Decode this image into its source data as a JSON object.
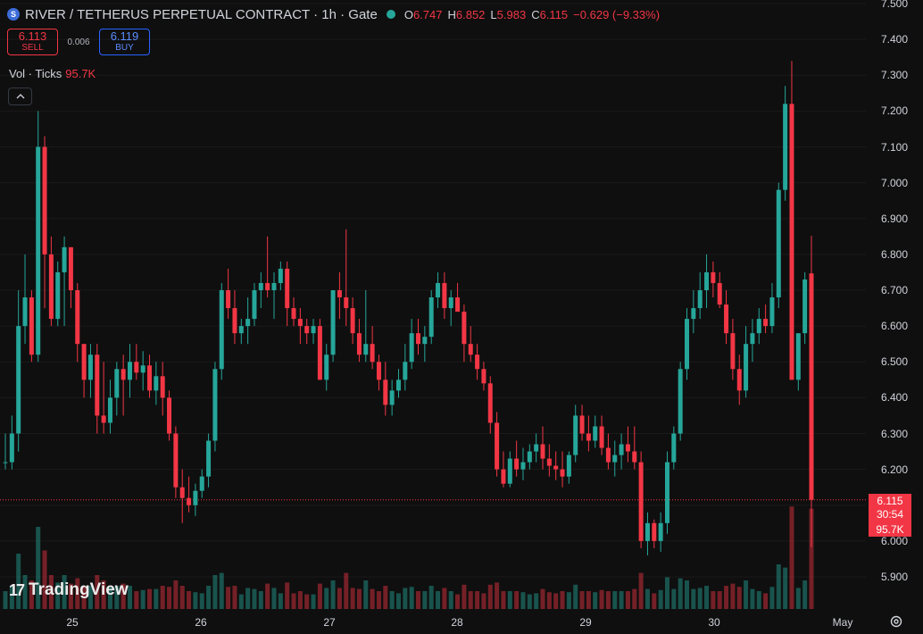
{
  "header": {
    "symbol_icon": "S",
    "title": "RIVER / TETHERUS PERPETUAL CONTRACT · 1h · Gate",
    "ohlc": {
      "o_label": "O",
      "o": "6.747",
      "h_label": "H",
      "h": "6.852",
      "l_label": "L",
      "l": "5.983",
      "c_label": "C",
      "c": "6.115",
      "change": "−0.629 (−9.33%)"
    }
  },
  "trade": {
    "sell_price": "6.113",
    "sell_label": "SELL",
    "spread": "0.006",
    "buy_price": "6.119",
    "buy_label": "BUY"
  },
  "volume_legend": {
    "label": "Vol · Ticks",
    "value": "95.7K"
  },
  "collapse_icon": "chevron-up-icon",
  "branding": {
    "logo_text": "TradingView",
    "logo_mark": "17"
  },
  "price_axis": {
    "labels": [
      "7.500",
      "7.400",
      "7.300",
      "7.200",
      "7.100",
      "7.000",
      "6.900",
      "6.800",
      "6.700",
      "6.600",
      "6.500",
      "6.400",
      "6.300",
      "6.200",
      "6.100",
      "6.000",
      "5.900"
    ],
    "current_price": "6.115",
    "countdown": "30:54",
    "current_volume": "95.7K"
  },
  "time_axis": {
    "labels": [
      "25",
      "26",
      "27",
      "28",
      "29",
      "30",
      "May"
    ]
  },
  "colors": {
    "up": "#26a69a",
    "down": "#f23645",
    "background": "#0f0f0f",
    "sell": "#f23645",
    "buy": "#2962ff"
  },
  "chart_data": {
    "type": "candlestick",
    "title": "RIVER / TETHERUS PERPETUAL CONTRACT · 1h · Gate",
    "ylim": [
      5.85,
      7.5
    ],
    "last_price": 6.115,
    "x_ticks": [
      "25",
      "26",
      "27",
      "28",
      "29",
      "30",
      "May"
    ],
    "candles_ohlc": [
      [
        6.22,
        6.3,
        6.2,
        6.22
      ],
      [
        6.22,
        6.35,
        6.2,
        6.3
      ],
      [
        6.3,
        6.7,
        6.25,
        6.6
      ],
      [
        6.6,
        6.8,
        6.55,
        6.68
      ],
      [
        6.68,
        6.7,
        6.5,
        6.52
      ],
      [
        6.52,
        7.2,
        6.5,
        7.1
      ],
      [
        7.1,
        7.13,
        6.65,
        6.8
      ],
      [
        6.8,
        6.85,
        6.6,
        6.62
      ],
      [
        6.62,
        6.78,
        6.6,
        6.75
      ],
      [
        6.75,
        6.85,
        6.6,
        6.82
      ],
      [
        6.82,
        6.82,
        6.65,
        6.7
      ],
      [
        6.7,
        6.72,
        6.5,
        6.55
      ],
      [
        6.55,
        6.55,
        6.4,
        6.45
      ],
      [
        6.45,
        6.55,
        6.4,
        6.52
      ],
      [
        6.52,
        6.55,
        6.3,
        6.35
      ],
      [
        6.35,
        6.5,
        6.3,
        6.33
      ],
      [
        6.33,
        6.45,
        6.3,
        6.4
      ],
      [
        6.4,
        6.5,
        6.35,
        6.48
      ],
      [
        6.48,
        6.52,
        6.35,
        6.45
      ],
      [
        6.45,
        6.55,
        6.4,
        6.5
      ],
      [
        6.5,
        6.55,
        6.45,
        6.47
      ],
      [
        6.47,
        6.53,
        6.42,
        6.49
      ],
      [
        6.49,
        6.52,
        6.4,
        6.42
      ],
      [
        6.42,
        6.5,
        6.38,
        6.46
      ],
      [
        6.46,
        6.5,
        6.35,
        6.4
      ],
      [
        6.4,
        6.42,
        6.28,
        6.3
      ],
      [
        6.3,
        6.32,
        6.12,
        6.15
      ],
      [
        6.15,
        6.2,
        6.05,
        6.12
      ],
      [
        6.12,
        6.18,
        6.08,
        6.1
      ],
      [
        6.1,
        6.16,
        6.07,
        6.14
      ],
      [
        6.14,
        6.2,
        6.12,
        6.18
      ],
      [
        6.18,
        6.3,
        6.15,
        6.28
      ],
      [
        6.28,
        6.5,
        6.25,
        6.48
      ],
      [
        6.48,
        6.72,
        6.45,
        6.7
      ],
      [
        6.7,
        6.76,
        6.62,
        6.65
      ],
      [
        6.65,
        6.7,
        6.55,
        6.58
      ],
      [
        6.58,
        6.62,
        6.55,
        6.6
      ],
      [
        6.6,
        6.68,
        6.55,
        6.62
      ],
      [
        6.62,
        6.72,
        6.6,
        6.7
      ],
      [
        6.7,
        6.75,
        6.65,
        6.72
      ],
      [
        6.72,
        6.85,
        6.68,
        6.7
      ],
      [
        6.7,
        6.75,
        6.62,
        6.72
      ],
      [
        6.72,
        6.78,
        6.7,
        6.76
      ],
      [
        6.76,
        6.78,
        6.6,
        6.65
      ],
      [
        6.65,
        6.68,
        6.6,
        6.62
      ],
      [
        6.62,
        6.65,
        6.55,
        6.6
      ],
      [
        6.6,
        6.62,
        6.55,
        6.58
      ],
      [
        6.58,
        6.62,
        6.55,
        6.6
      ],
      [
        6.6,
        6.62,
        6.45,
        6.45
      ],
      [
        6.45,
        6.55,
        6.42,
        6.52
      ],
      [
        6.52,
        6.7,
        6.5,
        6.7
      ],
      [
        6.7,
        6.75,
        6.62,
        6.68
      ],
      [
        6.68,
        6.87,
        6.6,
        6.65
      ],
      [
        6.65,
        6.68,
        6.55,
        6.58
      ],
      [
        6.58,
        6.62,
        6.5,
        6.52
      ],
      [
        6.52,
        6.7,
        6.5,
        6.55
      ],
      [
        6.55,
        6.6,
        6.48,
        6.5
      ],
      [
        6.5,
        6.52,
        6.42,
        6.45
      ],
      [
        6.45,
        6.5,
        6.35,
        6.38
      ],
      [
        6.38,
        6.45,
        6.35,
        6.42
      ],
      [
        6.42,
        6.48,
        6.4,
        6.45
      ],
      [
        6.45,
        6.55,
        6.42,
        6.5
      ],
      [
        6.5,
        6.62,
        6.48,
        6.58
      ],
      [
        6.58,
        6.62,
        6.52,
        6.55
      ],
      [
        6.55,
        6.6,
        6.5,
        6.57
      ],
      [
        6.57,
        6.7,
        6.55,
        6.68
      ],
      [
        6.68,
        6.75,
        6.65,
        6.72
      ],
      [
        6.72,
        6.75,
        6.62,
        6.65
      ],
      [
        6.65,
        6.7,
        6.6,
        6.68
      ],
      [
        6.68,
        6.72,
        6.65,
        6.64
      ],
      [
        6.64,
        6.66,
        6.5,
        6.55
      ],
      [
        6.55,
        6.6,
        6.5,
        6.52
      ],
      [
        6.52,
        6.55,
        6.45,
        6.48
      ],
      [
        6.48,
        6.5,
        6.42,
        6.44
      ],
      [
        6.44,
        6.46,
        6.3,
        6.33
      ],
      [
        6.33,
        6.36,
        6.18,
        6.2
      ],
      [
        6.2,
        6.25,
        6.15,
        6.16
      ],
      [
        6.16,
        6.25,
        6.15,
        6.23
      ],
      [
        6.23,
        6.28,
        6.18,
        6.2
      ],
      [
        6.2,
        6.26,
        6.17,
        6.22
      ],
      [
        6.22,
        6.27,
        6.2,
        6.25
      ],
      [
        6.25,
        6.3,
        6.22,
        6.27
      ],
      [
        6.27,
        6.32,
        6.2,
        6.23
      ],
      [
        6.23,
        6.27,
        6.18,
        6.21
      ],
      [
        6.21,
        6.25,
        6.17,
        6.2
      ],
      [
        6.2,
        6.25,
        6.15,
        6.18
      ],
      [
        6.18,
        6.25,
        6.16,
        6.24
      ],
      [
        6.24,
        6.38,
        6.22,
        6.35
      ],
      [
        6.35,
        6.38,
        6.28,
        6.3
      ],
      [
        6.3,
        6.35,
        6.25,
        6.28
      ],
      [
        6.28,
        6.35,
        6.26,
        6.32
      ],
      [
        6.32,
        6.35,
        6.24,
        6.26
      ],
      [
        6.26,
        6.3,
        6.2,
        6.22
      ],
      [
        6.22,
        6.28,
        6.18,
        6.24
      ],
      [
        6.24,
        6.3,
        6.2,
        6.27
      ],
      [
        6.27,
        6.32,
        6.22,
        6.25
      ],
      [
        6.25,
        6.32,
        6.2,
        6.22
      ],
      [
        6.22,
        6.25,
        5.98,
        6.0
      ],
      [
        6.0,
        6.08,
        5.96,
        6.05
      ],
      [
        6.05,
        6.06,
        5.98,
        6.0
      ],
      [
        6.0,
        6.08,
        5.97,
        6.05
      ],
      [
        6.05,
        6.25,
        6.02,
        6.22
      ],
      [
        6.22,
        6.32,
        6.2,
        6.3
      ],
      [
        6.3,
        6.5,
        6.28,
        6.48
      ],
      [
        6.48,
        6.65,
        6.45,
        6.62
      ],
      [
        6.62,
        6.7,
        6.58,
        6.65
      ],
      [
        6.65,
        6.75,
        6.62,
        6.7
      ],
      [
        6.7,
        6.8,
        6.65,
        6.75
      ],
      [
        6.75,
        6.78,
        6.68,
        6.72
      ],
      [
        6.72,
        6.75,
        6.65,
        6.66
      ],
      [
        6.66,
        6.7,
        6.55,
        6.58
      ],
      [
        6.58,
        6.62,
        6.45,
        6.48
      ],
      [
        6.48,
        6.52,
        6.38,
        6.42
      ],
      [
        6.42,
        6.6,
        6.4,
        6.55
      ],
      [
        6.55,
        6.62,
        6.5,
        6.58
      ],
      [
        6.58,
        6.65,
        6.55,
        6.62
      ],
      [
        6.62,
        6.66,
        6.58,
        6.6
      ],
      [
        6.6,
        6.72,
        6.58,
        6.68
      ],
      [
        6.68,
        7.0,
        6.65,
        6.98
      ],
      [
        6.98,
        7.27,
        6.95,
        7.22
      ],
      [
        7.22,
        7.34,
        6.45,
        6.45
      ],
      [
        6.45,
        6.55,
        6.42,
        6.58
      ],
      [
        6.58,
        6.75,
        6.55,
        6.73
      ],
      [
        6.747,
        6.852,
        5.983,
        6.115
      ]
    ]
  }
}
